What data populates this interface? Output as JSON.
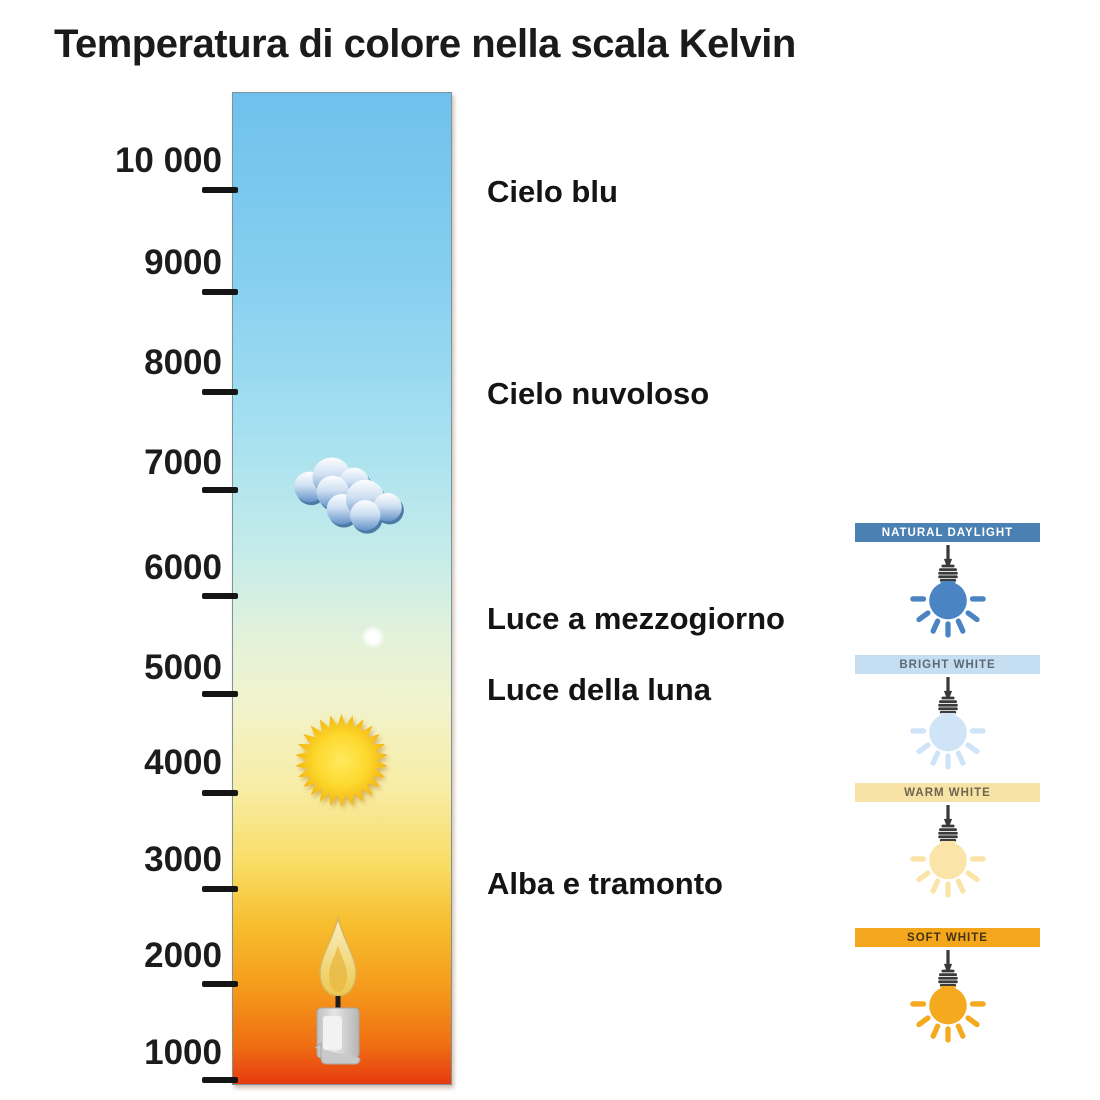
{
  "title": "Temperatura di colore nella scala Kelvin",
  "kelvin_scale": {
    "unit": "Kelvin",
    "tick_labels": [
      "10 000",
      "9000",
      "8000",
      "7000",
      "6000",
      "5000",
      "4000",
      "3000",
      "2000",
      "1000"
    ],
    "tick_values": [
      10000,
      9000,
      8000,
      7000,
      6000,
      5000,
      4000,
      3000,
      2000,
      1000
    ],
    "gradient_stops": [
      {
        "color": "#6fc1ec",
        "pos": 0
      },
      {
        "color": "#85ceef",
        "pos": 18
      },
      {
        "color": "#a3dff1",
        "pos": 33
      },
      {
        "color": "#c6ece9",
        "pos": 47
      },
      {
        "color": "#e3f2da",
        "pos": 55
      },
      {
        "color": "#f2f3cb",
        "pos": 62
      },
      {
        "color": "#f8eda6",
        "pos": 70
      },
      {
        "color": "#f9dc63",
        "pos": 78
      },
      {
        "color": "#f7bd2e",
        "pos": 84
      },
      {
        "color": "#f59d1c",
        "pos": 90
      },
      {
        "color": "#f06f13",
        "pos": 96
      },
      {
        "color": "#e63b10",
        "pos": 100
      }
    ]
  },
  "annotations": [
    {
      "label": "Cielo blu",
      "kelvin_approx": 10000
    },
    {
      "label": "Cielo nuvoloso",
      "kelvin_approx": 8000
    },
    {
      "label": "Luce a mezzogiorno",
      "kelvin_approx": 5600
    },
    {
      "label": "Luce della luna",
      "kelvin_approx": 5000
    },
    {
      "label": "Alba e tramonto",
      "kelvin_approx": 3000
    }
  ],
  "icons": [
    {
      "name": "clouds-icon",
      "kelvin_approx": 6900
    },
    {
      "name": "glow-dot-icon",
      "kelvin_approx": 5500
    },
    {
      "name": "sun-icon",
      "kelvin_approx": 4300
    },
    {
      "name": "candle-icon",
      "kelvin_approx": 1800
    }
  ],
  "bulb_panels": [
    {
      "label": "NATURAL DAYLIGHT",
      "banner_color": "#4a80b2",
      "label_color": "#ffffff",
      "bulb_color": "#4a84c2"
    },
    {
      "label": "BRIGHT WHITE",
      "banner_color": "#c6def2",
      "label_color": "#5d6a74",
      "bulb_color": "#cfe4f6"
    },
    {
      "label": "WARM WHITE",
      "banner_color": "#f8e3a6",
      "label_color": "#6f6550",
      "bulb_color": "#fae4a8"
    },
    {
      "label": "SOFT WHITE",
      "banner_color": "#f4a71c",
      "label_color": "#433312",
      "bulb_color": "#f5a91f"
    }
  ]
}
